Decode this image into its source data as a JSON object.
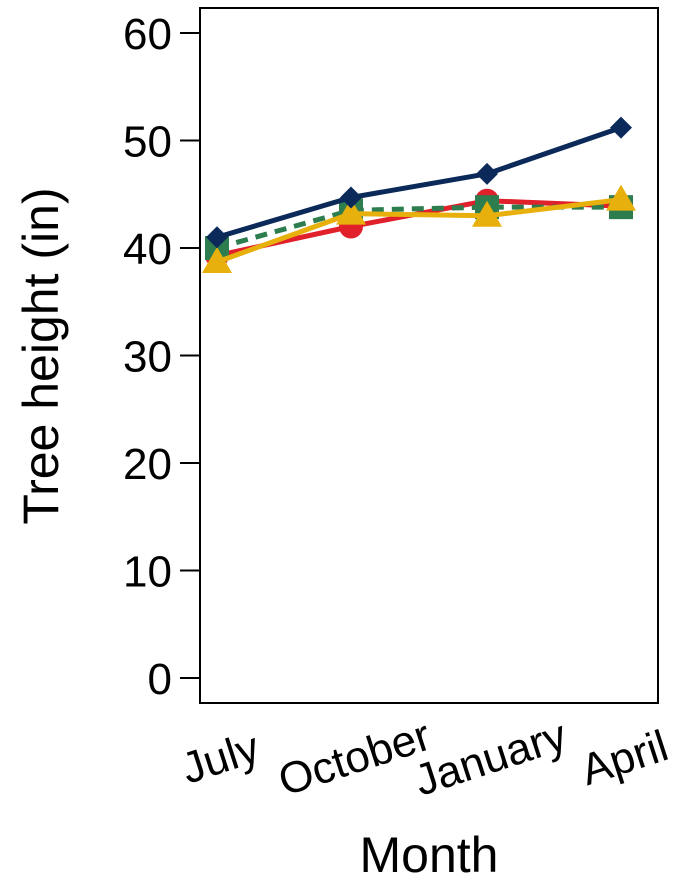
{
  "chart_data": {
    "type": "line",
    "title": "",
    "xlabel": "Month",
    "ylabel": "Tree height (in)",
    "categories": [
      "July",
      "October",
      "January",
      "April"
    ],
    "ylim": [
      0,
      60
    ],
    "yticks": [
      0,
      10,
      20,
      30,
      40,
      50,
      60
    ],
    "grid": false,
    "legend": "none",
    "series": [
      {
        "color": "#E0202A",
        "marker": "circle",
        "line_style": "solid",
        "values": [
          39.3,
          42.0,
          44.4,
          43.9
        ]
      },
      {
        "color": "#2E7D4F",
        "marker": "square",
        "line_style": "dashed",
        "values": [
          40.0,
          43.5,
          43.8,
          43.8
        ]
      },
      {
        "color": "#E8B00C",
        "marker": "triangle",
        "line_style": "solid",
        "values": [
          38.7,
          43.2,
          43.0,
          44.5
        ]
      },
      {
        "color": "#0B2A5A",
        "marker": "diamond",
        "line_style": "solid",
        "values": [
          41.0,
          44.7,
          46.9,
          51.2
        ]
      }
    ]
  }
}
